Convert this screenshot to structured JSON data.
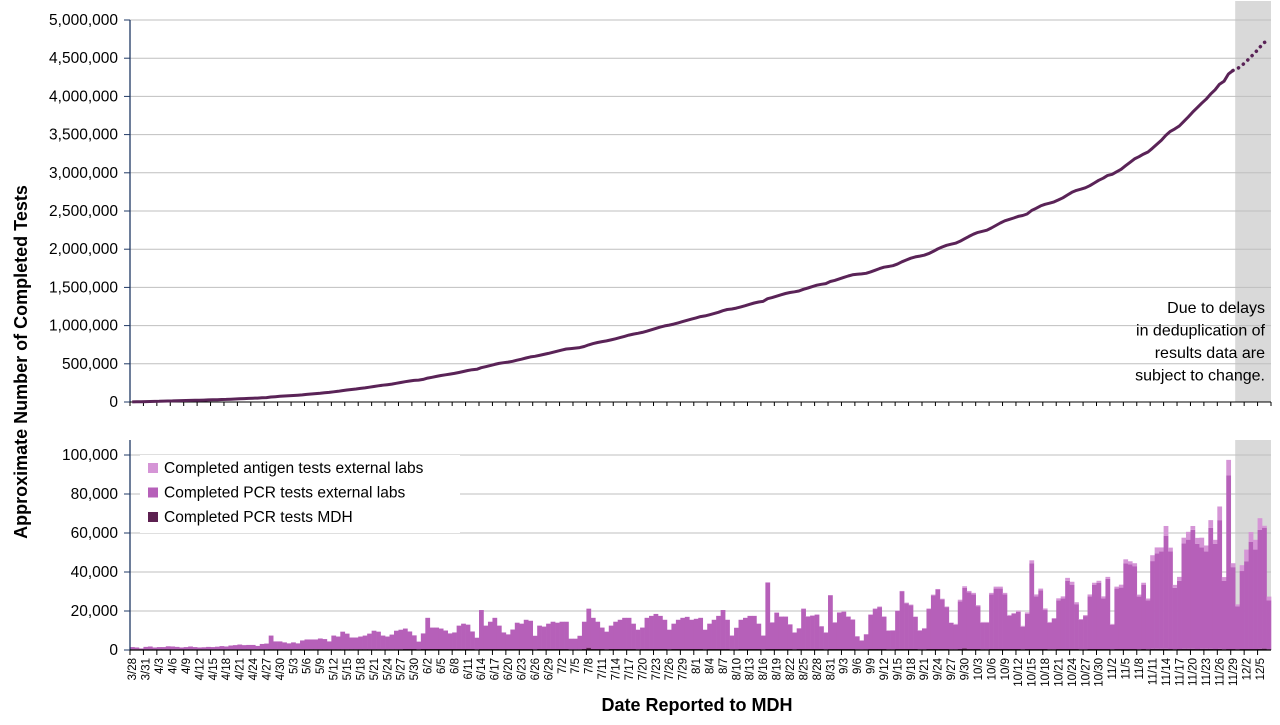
{
  "chart_data": [
    {
      "type": "line",
      "ylabel": "Approximate Number of Completed Tests",
      "ylim": [
        0,
        5000000
      ],
      "yticks": [
        0,
        500000,
        1000000,
        1500000,
        2000000,
        2500000,
        3000000,
        3500000,
        4000000,
        4500000,
        5000000
      ],
      "ytick_labels": [
        "0",
        "500,000",
        "1,000,000",
        "1,500,000",
        "2,000,000",
        "2,500,000",
        "3,000,000",
        "3,500,000",
        "4,000,000",
        "4,500,000",
        "5,000,000"
      ],
      "series": [
        {
          "values_source": "cumulative sum of daily completed tests",
          "color": "#5a2357",
          "dotted_in_shaded_region": true
        }
      ],
      "annotation": [
        "Due to delays",
        "in deduplication of",
        "results data are",
        "subject to change."
      ],
      "grid": true
    },
    {
      "type": "bar",
      "stacked": true,
      "xlabel": "Date Reported to MDH",
      "ylabel": "Approximate Number of Completed Tests",
      "ylim": [
        0,
        100000
      ],
      "yticks": [
        0,
        20000,
        40000,
        60000,
        80000,
        100000
      ],
      "ytick_labels": [
        "0",
        "20,000",
        "40,000",
        "60,000",
        "80,000",
        "100,000"
      ],
      "grid": true,
      "legend_placement": "top-left",
      "first_date": "3/28",
      "last_date": "12/7",
      "shaded_from": "11/30",
      "shade_color": "#d9d9d9",
      "xtick_labels": [
        "3/28",
        "3/31",
        "4/3",
        "4/6",
        "4/9",
        "4/12",
        "4/15",
        "4/18",
        "4/21",
        "4/24",
        "4/27",
        "4/30",
        "5/3",
        "5/6",
        "5/9",
        "5/12",
        "5/15",
        "5/18",
        "5/21",
        "5/24",
        "5/27",
        "5/30",
        "6/2",
        "6/5",
        "6/8",
        "6/11",
        "6/14",
        "6/17",
        "6/20",
        "6/23",
        "6/26",
        "6/29",
        "7/2",
        "7/5",
        "7/8",
        "7/11",
        "7/14",
        "7/17",
        "7/20",
        "7/23",
        "7/26",
        "7/29",
        "8/1",
        "8/4",
        "8/7",
        "8/10",
        "8/13",
        "8/16",
        "8/19",
        "8/22",
        "8/25",
        "8/28",
        "8/31",
        "9/3",
        "9/6",
        "9/9",
        "9/12",
        "9/15",
        "9/18",
        "9/21",
        "9/24",
        "9/27",
        "9/30",
        "10/3",
        "10/6",
        "10/9",
        "10/12",
        "10/15",
        "10/18",
        "10/21",
        "10/24",
        "10/27",
        "10/30",
        "11/2",
        "11/5",
        "11/8",
        "11/11",
        "11/14",
        "11/17",
        "11/20",
        "11/23",
        "11/26",
        "11/29",
        "12/2",
        "12/5"
      ],
      "series": [
        {
          "name": "Completed PCR tests MDH",
          "color": "#5c2050",
          "start_date": "3/28",
          "values": [
            300,
            300,
            200,
            300,
            300,
            300,
            300,
            300,
            300,
            300,
            300,
            300,
            300,
            300,
            300,
            300,
            300,
            300,
            300,
            300,
            300,
            300,
            300,
            300,
            300,
            300,
            300,
            300,
            300,
            300,
            300,
            400,
            400,
            400,
            400,
            400,
            400,
            400,
            400,
            400,
            400,
            400,
            400,
            400,
            400,
            400,
            400,
            400,
            400,
            400,
            400,
            400,
            400,
            400,
            400,
            400,
            400,
            400,
            400,
            400,
            400,
            500,
            500,
            500,
            300,
            500,
            500,
            500,
            500,
            500,
            500,
            500,
            500,
            500,
            500,
            500,
            500,
            300,
            500,
            500,
            500,
            500,
            500,
            500,
            500,
            500,
            500,
            500,
            500,
            500,
            300,
            500,
            500,
            500,
            500,
            500,
            500,
            500,
            300,
            300,
            300,
            500,
            1200,
            500,
            500,
            500,
            400,
            500,
            500,
            500,
            500,
            500,
            500,
            400,
            500,
            500,
            500,
            500,
            500,
            500,
            400,
            500,
            500,
            500,
            500,
            500,
            500,
            500,
            400,
            500,
            500,
            500,
            500,
            500,
            400,
            400,
            500,
            500,
            500,
            500,
            500,
            400,
            500,
            500,
            500,
            500,
            500,
            500,
            400,
            500,
            500,
            500,
            500,
            500,
            500,
            400,
            500,
            500,
            500,
            500,
            500,
            500,
            400,
            300,
            400,
            500,
            500,
            500,
            500,
            400,
            400,
            500,
            500,
            500,
            500,
            500,
            400,
            400,
            500,
            500,
            500,
            500,
            500,
            400,
            400,
            500,
            900,
            500,
            500,
            500,
            400,
            400,
            500,
            500,
            500,
            500,
            500,
            500,
            500,
            400,
            500,
            500,
            500,
            500,
            500,
            400,
            400,
            500,
            500,
            500,
            500,
            500,
            400,
            400,
            500,
            500,
            500,
            500,
            500,
            400,
            500,
            500,
            500,
            500,
            500,
            400,
            500,
            400,
            600,
            600,
            600,
            600,
            500,
            400,
            500,
            600,
            600,
            600,
            500,
            600,
            600,
            600,
            500,
            600,
            400,
            500,
            500,
            400,
            500,
            500,
            500,
            500,
            600,
            700,
            400
          ]
        },
        {
          "name": "Completed PCR tests external labs",
          "color": "#b660b9",
          "start_date": "3/28",
          "values": [
            1200,
            1000,
            600,
            1300,
            1500,
            1000,
            1200,
            1200,
            1600,
            1500,
            1300,
            1000,
            1200,
            1500,
            1200,
            1000,
            1100,
            1300,
            1200,
            1400,
            1700,
            1500,
            2000,
            2200,
            2500,
            2200,
            2300,
            2300,
            1800,
            2800,
            3000,
            7000,
            4000,
            4000,
            3500,
            3000,
            3500,
            3000,
            4500,
            5000,
            5000,
            5000,
            5500,
            5200,
            4000,
            7000,
            6500,
            9000,
            8000,
            6000,
            6000,
            6500,
            7000,
            8000,
            9500,
            9000,
            7000,
            6500,
            7500,
            9500,
            10000,
            10500,
            9000,
            7000,
            4000,
            8000,
            16000,
            11000,
            11000,
            10500,
            9500,
            8000,
            8500,
            12000,
            13000,
            12500,
            9000,
            6000,
            20000,
            12000,
            14000,
            16000,
            12000,
            8500,
            7500,
            10000,
            13500,
            13000,
            15000,
            14500,
            7000,
            12000,
            11500,
            13000,
            14000,
            13500,
            14000,
            14000,
            5500,
            5500,
            7000,
            14000,
            20000,
            16000,
            14000,
            11000,
            9000,
            12000,
            14000,
            15000,
            16000,
            16000,
            13000,
            10000,
            11000,
            16000,
            17000,
            18000,
            17000,
            15000,
            10000,
            13000,
            15000,
            16000,
            16500,
            15000,
            15500,
            16000,
            10000,
            13000,
            15000,
            17000,
            20000,
            15000,
            7000,
            11000,
            15000,
            16000,
            17000,
            17000,
            13000,
            7000,
            34000,
            13500,
            18500,
            16500,
            16500,
            12500,
            8500,
            10500,
            20500,
            16500,
            17000,
            17500,
            11500,
            8500,
            27500,
            13500,
            18500,
            19000,
            16500,
            15000,
            6500,
            4500,
            7500,
            17500,
            20500,
            21500,
            16500,
            9500,
            9500,
            19500,
            29500,
            23500,
            22500,
            16500,
            9500,
            10500,
            20500,
            27500,
            30500,
            25500,
            21500,
            13500,
            12500,
            24500,
            31000,
            29000,
            28000,
            22000,
            13500,
            13500,
            28000,
            31000,
            31000,
            28000,
            17000,
            18000,
            19000,
            11500,
            18000,
            44000,
            27000,
            30000,
            20000,
            13500,
            15500,
            25000,
            26000,
            35000,
            33000,
            23000,
            15000,
            17000,
            27000,
            33000,
            34000,
            26000,
            36000,
            12500,
            31000,
            31500,
            44000,
            43500,
            42500,
            27000,
            33000,
            25000,
            45000,
            49000,
            50000,
            58000,
            50000,
            31500,
            35000,
            54000,
            56000,
            61000,
            54000,
            52000,
            50000,
            62000,
            54000,
            66000,
            35000,
            89000,
            42000,
            22000,
            40000,
            45000,
            55000,
            51000,
            61000,
            62000,
            25000
          ]
        },
        {
          "name": "Completed antigen tests external labs",
          "color": "#d595d6",
          "start_date": "8/17",
          "values": [
            300,
            300,
            300,
            300,
            300,
            300,
            200,
            200,
            300,
            400,
            300,
            300,
            300,
            200,
            200,
            300,
            400,
            300,
            300,
            300,
            200,
            200,
            300,
            300,
            300,
            300,
            300,
            200,
            300,
            300,
            300,
            300,
            300,
            200,
            300,
            400,
            300,
            400,
            300,
            300,
            300,
            200,
            500,
            800,
            800,
            800,
            800,
            500,
            500,
            500,
            800,
            1000,
            1000,
            800,
            500,
            500,
            800,
            500,
            800,
            1500,
            1000,
            1000,
            800,
            500,
            500,
            1000,
            1000,
            1500,
            1500,
            1000,
            500,
            500,
            1000,
            1000,
            1000,
            1000,
            1000,
            500,
            1000,
            1500,
            2000,
            1500,
            1500,
            1000,
            1000,
            1000,
            3000,
            3000,
            2000,
            5000,
            2000,
            1500,
            2000,
            3000,
            4000,
            2000,
            3000,
            5000,
            3000,
            4000,
            2000,
            7000,
            2000,
            8000,
            2000,
            1000,
            3000,
            6000,
            5000,
            5000,
            6000,
            1000,
            2000
          ]
        }
      ]
    }
  ]
}
